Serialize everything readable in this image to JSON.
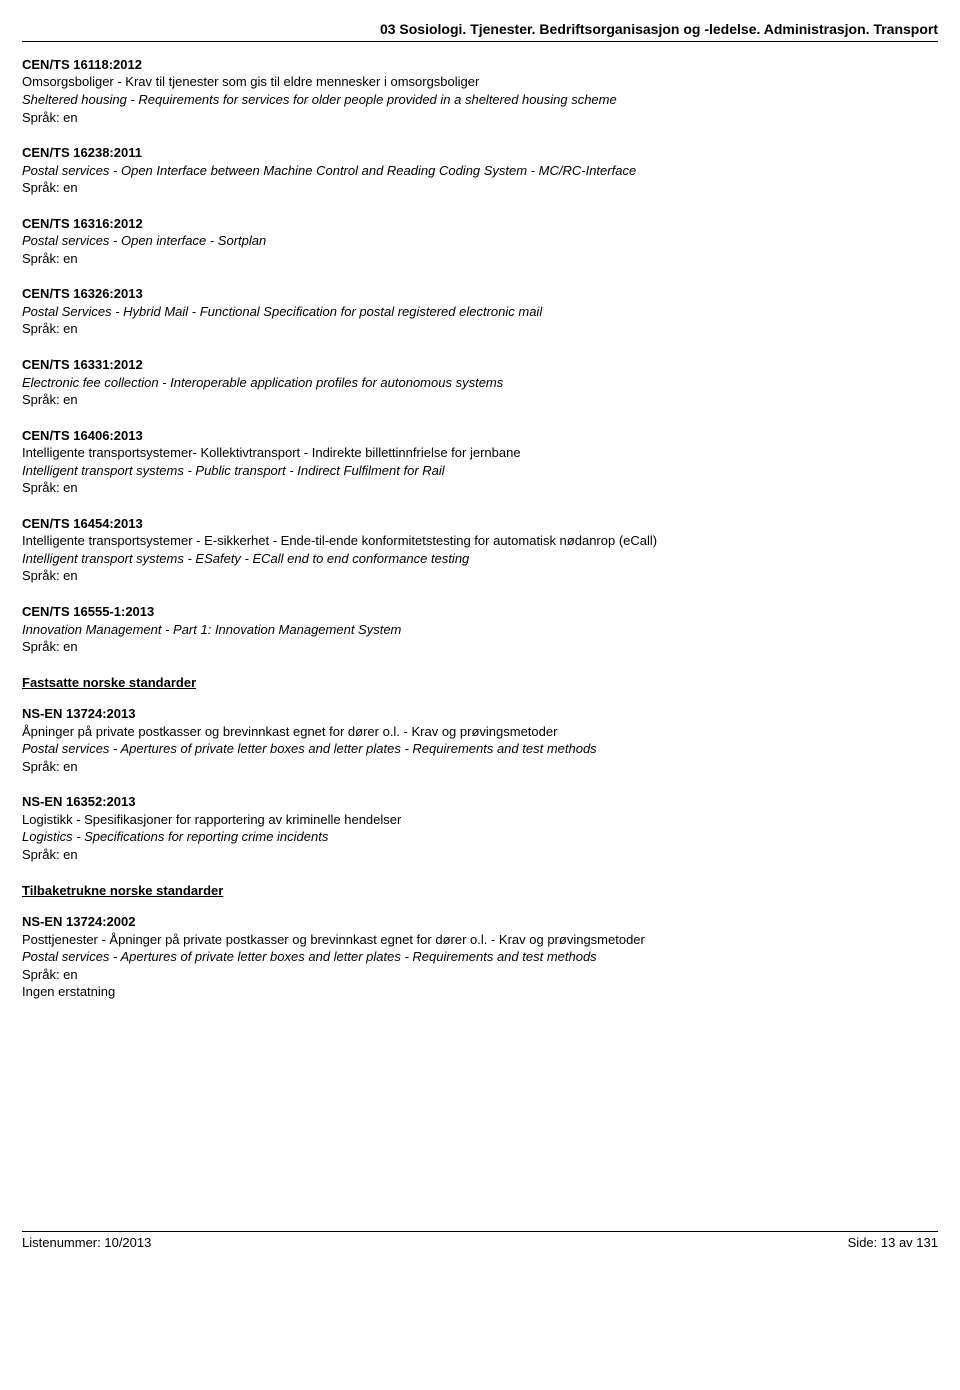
{
  "header": "03  Sosiologi. Tjenester. Bedriftsorganisasjon og -ledelse. Administrasjon. Transport",
  "lang_label": "Språk: en",
  "no_replacement": "Ingen erstatning",
  "sections": {
    "fastsatte": "Fastsatte norske standarder",
    "tilbaketrukne": "Tilbaketrukne norske standarder"
  },
  "entries": [
    {
      "code": "CEN/TS 16118:2012",
      "no": "Omsorgsboliger - Krav til tjenester som gis til eldre mennesker i omsorgsboliger",
      "en": "Sheltered housing - Requirements for services for older people provided in a sheltered housing scheme"
    },
    {
      "code": "CEN/TS 16238:2011",
      "en": "Postal services - Open Interface between Machine Control and Reading Coding System - MC/RC-Interface"
    },
    {
      "code": "CEN/TS 16316:2012",
      "en": "Postal services - Open interface - Sortplan"
    },
    {
      "code": "CEN/TS 16326:2013",
      "en": "Postal Services - Hybrid Mail - Functional Specification for postal registered electronic mail"
    },
    {
      "code": "CEN/TS 16331:2012",
      "en": "Electronic fee collection - Interoperable application profiles for autonomous systems"
    },
    {
      "code": "CEN/TS 16406:2013",
      "no": "Intelligente transportsystemer- Kollektivtransport - Indirekte billettinnfrielse for jernbane",
      "en": "Intelligent transport systems - Public transport - Indirect Fulfilment for Rail"
    },
    {
      "code": "CEN/TS 16454:2013",
      "no": "Intelligente transportsystemer - E-sikkerhet - Ende-til-ende konformitetstesting  for automatisk nødanrop (eCall)",
      "en": "Intelligent transport systems - ESafety - ECall end to end conformance testing"
    },
    {
      "code": "CEN/TS 16555-1:2013",
      "en": "Innovation Management - Part 1: Innovation Management System"
    }
  ],
  "fastsatte_entries": [
    {
      "code": "NS-EN 13724:2013",
      "no": "Åpninger på private postkasser og brevinnkast egnet for dører o.l. - Krav og prøvingsmetoder",
      "en": "Postal services - Apertures of private letter boxes and letter plates - Requirements and test methods"
    },
    {
      "code": "NS-EN 16352:2013",
      "no": "Logistikk - Spesifikasjoner for rapportering av kriminelle hendelser",
      "en": "Logistics - Specifications for reporting crime incidents"
    }
  ],
  "tilbaketrukne_entries": [
    {
      "code": "NS-EN 13724:2002",
      "no": "Posttjenester - Åpninger på private postkasser og brevinnkast egnet for dører o.l. - Krav og prøvingsmetoder",
      "en": "Postal services - Apertures of private letter boxes and letter plates - Requirements and test methods"
    }
  ],
  "footer": {
    "left": "Listenummer: 10/2013",
    "right": "Side: 13 av 131"
  }
}
